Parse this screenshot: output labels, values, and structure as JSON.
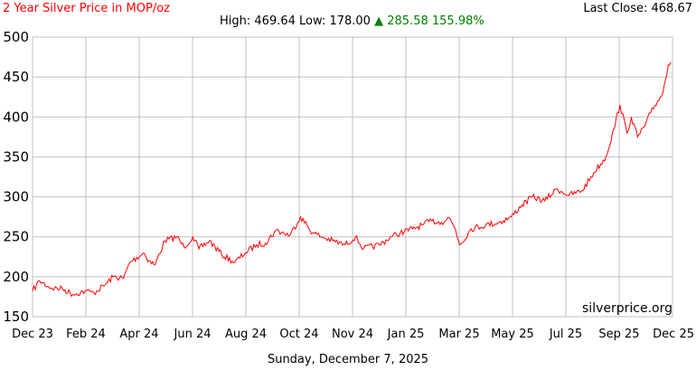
{
  "header": {
    "title": "2 Year Silver Price in MOP/oz",
    "last_close_label": "Last Close:",
    "last_close_value": "468.67",
    "high_label": "High:",
    "high_value": "469.64",
    "low_label": "Low:",
    "low_value": "178.00",
    "change_arrow": "▲",
    "change_value": "285.58",
    "change_percent": "155.98%"
  },
  "watermark": "silverprice.org",
  "date_label": "Sunday, December 7, 2025",
  "colors": {
    "line": "#ff0000",
    "grid": "#c0c0c0",
    "title": "#ff0000",
    "change": "#008000"
  },
  "chart_data": {
    "type": "line",
    "title": "2 Year Silver Price in MOP/oz",
    "xlabel": "",
    "ylabel": "",
    "ylim": [
      150,
      500
    ],
    "xlim": [
      "2023-12-07",
      "2025-12-07"
    ],
    "yticks": [
      150,
      200,
      250,
      300,
      350,
      400,
      450,
      500
    ],
    "xticks": [
      "Dec 23",
      "Feb 24",
      "Apr 24",
      "Jun 24",
      "Aug 24",
      "Oct 24",
      "Nov 24",
      "Jan 25",
      "Mar 25",
      "May 25",
      "Jul 25",
      "Sep 25",
      "Dec 25"
    ],
    "grid": true,
    "legend": "none",
    "series": [
      {
        "x": [
          "2023-12-07",
          "2023-12-15",
          "2023-12-28",
          "2024-01-10",
          "2024-01-22",
          "2024-02-05",
          "2024-02-15",
          "2024-02-28",
          "2024-03-08",
          "2024-03-20",
          "2024-03-27",
          "2024-04-12",
          "2024-04-18",
          "2024-04-25",
          "2024-05-06",
          "2024-05-20",
          "2024-05-28",
          "2024-06-07",
          "2024-06-14",
          "2024-06-26",
          "2024-07-10",
          "2024-07-25",
          "2024-08-06",
          "2024-08-19",
          "2024-08-29",
          "2024-09-10",
          "2024-09-26",
          "2024-10-08",
          "2024-10-22",
          "2024-11-01",
          "2024-11-14",
          "2024-11-28",
          "2024-12-10",
          "2024-12-19",
          "2025-01-06",
          "2025-01-20",
          "2025-01-30",
          "2025-02-13",
          "2025-02-25",
          "2025-03-07",
          "2025-03-18",
          "2025-03-27",
          "2025-04-03",
          "2025-04-08",
          "2025-04-21",
          "2025-05-08",
          "2025-05-23",
          "2025-06-06",
          "2025-06-18",
          "2025-06-30",
          "2025-07-14",
          "2025-07-28",
          "2025-08-11",
          "2025-08-26",
          "2025-09-08",
          "2025-09-22",
          "2025-10-01",
          "2025-10-08",
          "2025-10-16",
          "2025-10-21",
          "2025-10-28",
          "2025-11-06",
          "2025-11-12",
          "2025-11-20",
          "2025-11-26",
          "2025-12-02",
          "2025-12-05"
        ],
        "y": [
          182,
          195,
          186,
          185,
          178,
          182,
          180,
          190,
          200,
          198,
          218,
          230,
          220,
          215,
          245,
          250,
          237,
          250,
          235,
          245,
          228,
          218,
          230,
          240,
          242,
          258,
          252,
          275,
          255,
          250,
          245,
          240,
          250,
          235,
          240,
          250,
          255,
          260,
          265,
          270,
          268,
          274,
          260,
          240,
          260,
          265,
          268,
          275,
          290,
          300,
          295,
          310,
          302,
          308,
          330,
          350,
          385,
          415,
          380,
          400,
          375,
          390,
          405,
          420,
          430,
          465,
          468.67
        ]
      }
    ]
  }
}
